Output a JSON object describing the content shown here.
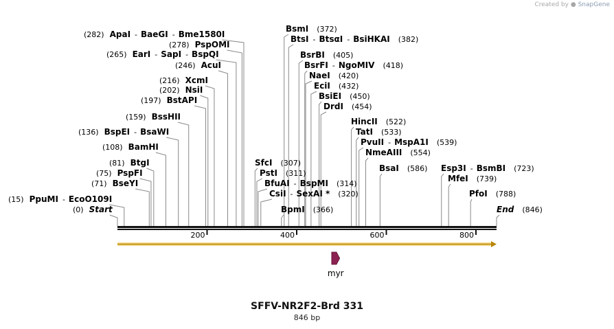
{
  "credit": {
    "prefix": "Created by",
    "brand": "SnapGene"
  },
  "map": {
    "title": "SFFV-NR2F2-Brd 331",
    "length_label": "846 bp",
    "sequence_length": 846,
    "ticks": [
      "200",
      "400",
      "600",
      "800"
    ],
    "feature": {
      "name": "myr",
      "start": 478,
      "end": 496,
      "color": "#8b2252",
      "direction": "forward"
    },
    "enzymes_left": [
      {
        "label": "(282)",
        "names": [
          "ApaI",
          "BaeGI",
          "Bme1580I"
        ],
        "pos": 282
      },
      {
        "label": "(278)",
        "names": [
          "PspOMI"
        ],
        "pos": 278
      },
      {
        "label": "(265)",
        "names": [
          "EarI",
          "SapI",
          "BspQI"
        ],
        "pos": 265
      },
      {
        "label": "(246)",
        "names": [
          "AcuI"
        ],
        "pos": 246
      },
      {
        "label": "(216)",
        "names": [
          "XcmI"
        ],
        "pos": 216
      },
      {
        "label": "(202)",
        "names": [
          "NsiI"
        ],
        "pos": 202
      },
      {
        "label": "(197)",
        "names": [
          "BstAPI"
        ],
        "pos": 197
      },
      {
        "label": "(159)",
        "names": [
          "BssHII"
        ],
        "pos": 159
      },
      {
        "label": "(136)",
        "names": [
          "BspEI",
          "BsaWI"
        ],
        "pos": 136
      },
      {
        "label": "(108)",
        "names": [
          "BamHI"
        ],
        "pos": 108
      },
      {
        "label": "(81)",
        "names": [
          "BtgI"
        ],
        "pos": 81
      },
      {
        "label": "(75)",
        "names": [
          "PspFI"
        ],
        "pos": 75
      },
      {
        "label": "(71)",
        "names": [
          "BseYI"
        ],
        "pos": 71
      },
      {
        "label": "(15)",
        "names": [
          "PpuMI",
          "EcoO109I"
        ],
        "pos": 15
      },
      {
        "label": "(0)",
        "names": [
          "Start"
        ],
        "pos": 0,
        "italic": true
      }
    ],
    "enzymes_right": [
      {
        "label": "(372)",
        "names": [
          "BsmI"
        ],
        "pos": 372
      },
      {
        "label": "(382)",
        "names": [
          "BtsI",
          "BtsαI",
          "BsiHKAI"
        ],
        "pos": 382
      },
      {
        "label": "(405)",
        "names": [
          "BsrBI"
        ],
        "pos": 405
      },
      {
        "label": "(418)",
        "names": [
          "BsrFI",
          "NgoMIV"
        ],
        "pos": 418
      },
      {
        "label": "(420)",
        "names": [
          "NaeI"
        ],
        "pos": 420
      },
      {
        "label": "(432)",
        "names": [
          "EciI"
        ],
        "pos": 432
      },
      {
        "label": "(450)",
        "names": [
          "BsiEI"
        ],
        "pos": 450
      },
      {
        "label": "(454)",
        "names": [
          "DrdI"
        ],
        "pos": 454
      },
      {
        "label": "(307)",
        "names": [
          "SfcI"
        ],
        "pos": 307
      },
      {
        "label": "(311)",
        "names": [
          "PstI"
        ],
        "pos": 311
      },
      {
        "label": "(314)",
        "names": [
          "BfuAI",
          "BspMI"
        ],
        "pos": 314
      },
      {
        "label": "(320)",
        "names": [
          "CsiI",
          "SexAI *"
        ],
        "pos": 320
      },
      {
        "label": "(366)",
        "names": [
          "BpmI"
        ],
        "pos": 366
      },
      {
        "label": "(522)",
        "names": [
          "HincII"
        ],
        "pos": 522
      },
      {
        "label": "(533)",
        "names": [
          "TatI"
        ],
        "pos": 533
      },
      {
        "label": "(539)",
        "names": [
          "PvuII",
          "MspA1I"
        ],
        "pos": 539
      },
      {
        "label": "(554)",
        "names": [
          "NmeAIII"
        ],
        "pos": 554
      },
      {
        "label": "(586)",
        "names": [
          "BsaI"
        ],
        "pos": 586
      },
      {
        "label": "(723)",
        "names": [
          "Esp3I",
          "BsmBI"
        ],
        "pos": 723
      },
      {
        "label": "(739)",
        "names": [
          "MfeI"
        ],
        "pos": 739
      },
      {
        "label": "(788)",
        "names": [
          "PfoI"
        ],
        "pos": 788
      },
      {
        "label": "(846)",
        "names": [
          "End"
        ],
        "pos": 846,
        "italic": true
      }
    ]
  }
}
